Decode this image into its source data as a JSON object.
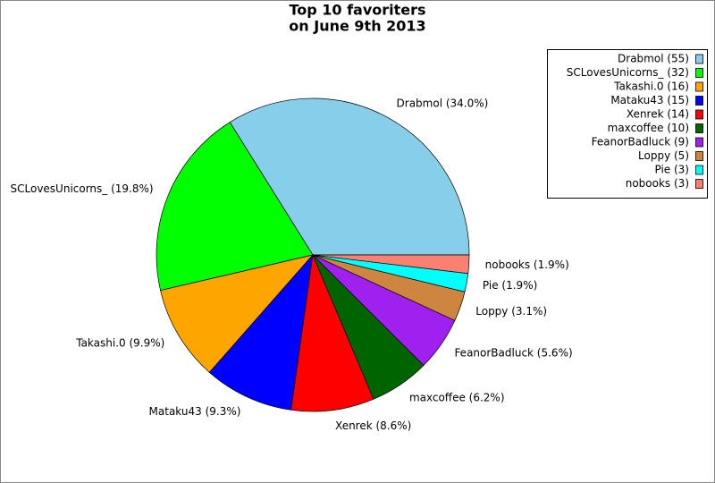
{
  "chart_data": {
    "type": "pie",
    "title": "Top 10 favoriters",
    "subtitle": "on June 9th 2013",
    "categories": [
      "Drabmol (55)",
      "SCLovesUnicorns_ (32)",
      "Takashi.0 (16)",
      "Mataku43 (15)",
      "Xenrek (14)",
      "maxcoffee (10)",
      "FeanorBadluck (9)",
      "Loppy (5)",
      "Pie (3)",
      "nobooks (3)"
    ],
    "values": [
      34.0,
      19.8,
      9.9,
      9.3,
      8.6,
      6.2,
      5.6,
      3.1,
      1.9,
      1.9
    ],
    "value_labels": [
      "Drabmol (34.0%)",
      "SCLovesUnicorns_ (19.8%)",
      "Takashi.0 (9.9%)",
      "Mataku43 (9.3%)",
      "Xenrek (8.6%)",
      "maxcoffee (6.2%)",
      "FeanorBadluck (5.6%)",
      "Loppy (3.1%)",
      "Pie (1.9%)",
      "nobooks (1.9%)"
    ],
    "colors": [
      "#87ceeb",
      "#00ff00",
      "#ffa500",
      "#0000ff",
      "#ff0000",
      "#006400",
      "#a020f0",
      "#cd853f",
      "#00ffff",
      "#fa8072"
    ],
    "legend": "top-right"
  }
}
